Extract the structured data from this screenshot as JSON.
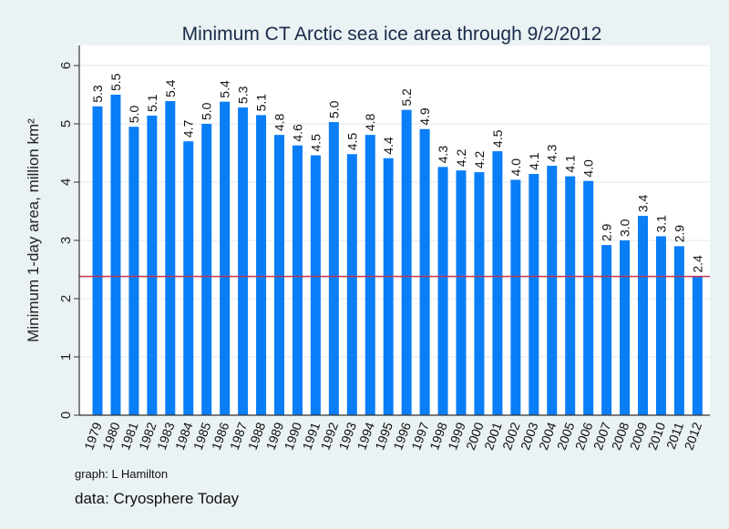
{
  "chart_data": {
    "type": "bar",
    "title": "Minimum CT Arctic sea ice area through 9/2/2012",
    "xlabel": "",
    "ylabel": "Minimum 1-day area, million km²",
    "ylim": [
      0,
      6.3
    ],
    "yticks": [
      "0",
      "1",
      "2",
      "3",
      "4",
      "5",
      "6"
    ],
    "grid": true,
    "categories": [
      "1979",
      "1980",
      "1981",
      "1982",
      "1983",
      "1984",
      "1985",
      "1986",
      "1987",
      "1988",
      "1989",
      "1990",
      "1991",
      "1992",
      "1993",
      "1994",
      "1995",
      "1996",
      "1997",
      "1998",
      "1999",
      "2000",
      "2001",
      "2002",
      "2003",
      "2004",
      "2005",
      "2006",
      "2007",
      "2008",
      "2009",
      "2010",
      "2011",
      "2012"
    ],
    "values": [
      5.3,
      5.5,
      4.95,
      5.14,
      5.39,
      4.7,
      5.0,
      5.38,
      5.28,
      5.15,
      4.81,
      4.63,
      4.46,
      5.03,
      4.48,
      4.81,
      4.41,
      5.24,
      4.91,
      4.26,
      4.2,
      4.17,
      4.53,
      4.04,
      4.14,
      4.28,
      4.1,
      4.02,
      2.92,
      3.0,
      3.42,
      3.07,
      2.9,
      2.38
    ],
    "labels": [
      "5.3",
      "5.5",
      "5.0",
      "5.1",
      "5.4",
      "4.7",
      "5.0",
      "5.4",
      "5.3",
      "5.1",
      "4.8",
      "4.6",
      "4.5",
      "5.0",
      "4.5",
      "4.8",
      "4.4",
      "5.2",
      "4.9",
      "4.3",
      "4.2",
      "4.2",
      "4.5",
      "4.0",
      "4.1",
      "4.3",
      "4.1",
      "4.0",
      "2.9",
      "3.0",
      "3.4",
      "3.1",
      "2.9",
      "2.4"
    ],
    "reference_line": 2.38,
    "colors": {
      "bar": "#0a7ef7",
      "reference_line": "#c0344f",
      "grid": "#e6eef0",
      "plot_bg": "#ffffff"
    }
  },
  "notes": {
    "graph": "graph:  L Hamilton",
    "data": "data:  Cryosphere Today"
  }
}
